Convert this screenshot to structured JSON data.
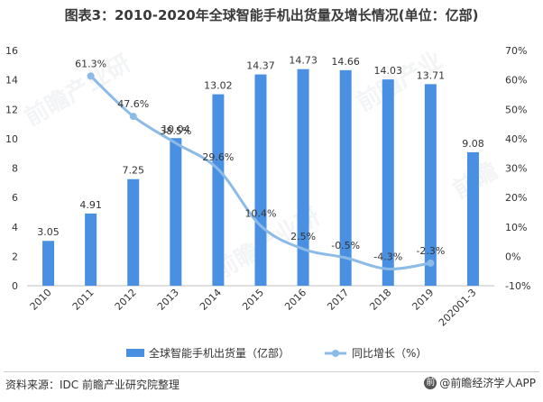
{
  "title": "图表3：2010-2020年全球智能手机出货量及增长情况(单位：亿部)",
  "chart_data": {
    "type": "bar+line",
    "categories": [
      "2010",
      "2011",
      "2012",
      "2013",
      "2014",
      "2015",
      "2016",
      "2017",
      "2018",
      "2019",
      "202001-3"
    ],
    "series": [
      {
        "name": "全球智能手机出货量（亿部）",
        "type": "bar",
        "axis": "left",
        "values": [
          3.05,
          4.91,
          7.25,
          10.04,
          13.02,
          14.37,
          14.73,
          14.66,
          14.03,
          13.71,
          9.08
        ],
        "labels": [
          "3.05",
          "4.91",
          "7.25",
          "10.04",
          "13.02",
          "14.37",
          "14.73",
          "14.66",
          "14.03",
          "13.71",
          "9.08"
        ],
        "color": "#4a90e2"
      },
      {
        "name": "同比增长（%）",
        "type": "line",
        "axis": "right",
        "values": [
          null,
          61.3,
          47.6,
          38.5,
          29.6,
          10.4,
          2.5,
          -0.5,
          -4.3,
          -2.3,
          null
        ],
        "labels": [
          "",
          "61.3%",
          "47.6%",
          "38.5%",
          "29.6%",
          "10.4%",
          "2.5%",
          "-0.5%",
          "-4.3%",
          "-2.3%",
          ""
        ],
        "color": "#8dbbe8"
      }
    ],
    "y_left": {
      "min": 0,
      "max": 16,
      "ticks": [
        "0",
        "2",
        "4",
        "6",
        "8",
        "10",
        "12",
        "14",
        "16"
      ]
    },
    "y_right": {
      "min": -10,
      "max": 70,
      "ticks": [
        "-10%",
        "0%",
        "10%",
        "20%",
        "30%",
        "40%",
        "50%",
        "60%",
        "70%"
      ]
    },
    "legend_position": "bottom",
    "grid": false
  },
  "footer": {
    "source": "资料来源：IDC 前瞻产业研究院整理",
    "brand": "@前瞻经济学人APP",
    "brand_icon": "前"
  },
  "colors": {
    "bar": "#4a90e2",
    "line": "#8dbbe8",
    "axis": "#bfbfbf",
    "text": "#333333"
  },
  "icons": {
    "brand": "brand-logo-icon"
  }
}
